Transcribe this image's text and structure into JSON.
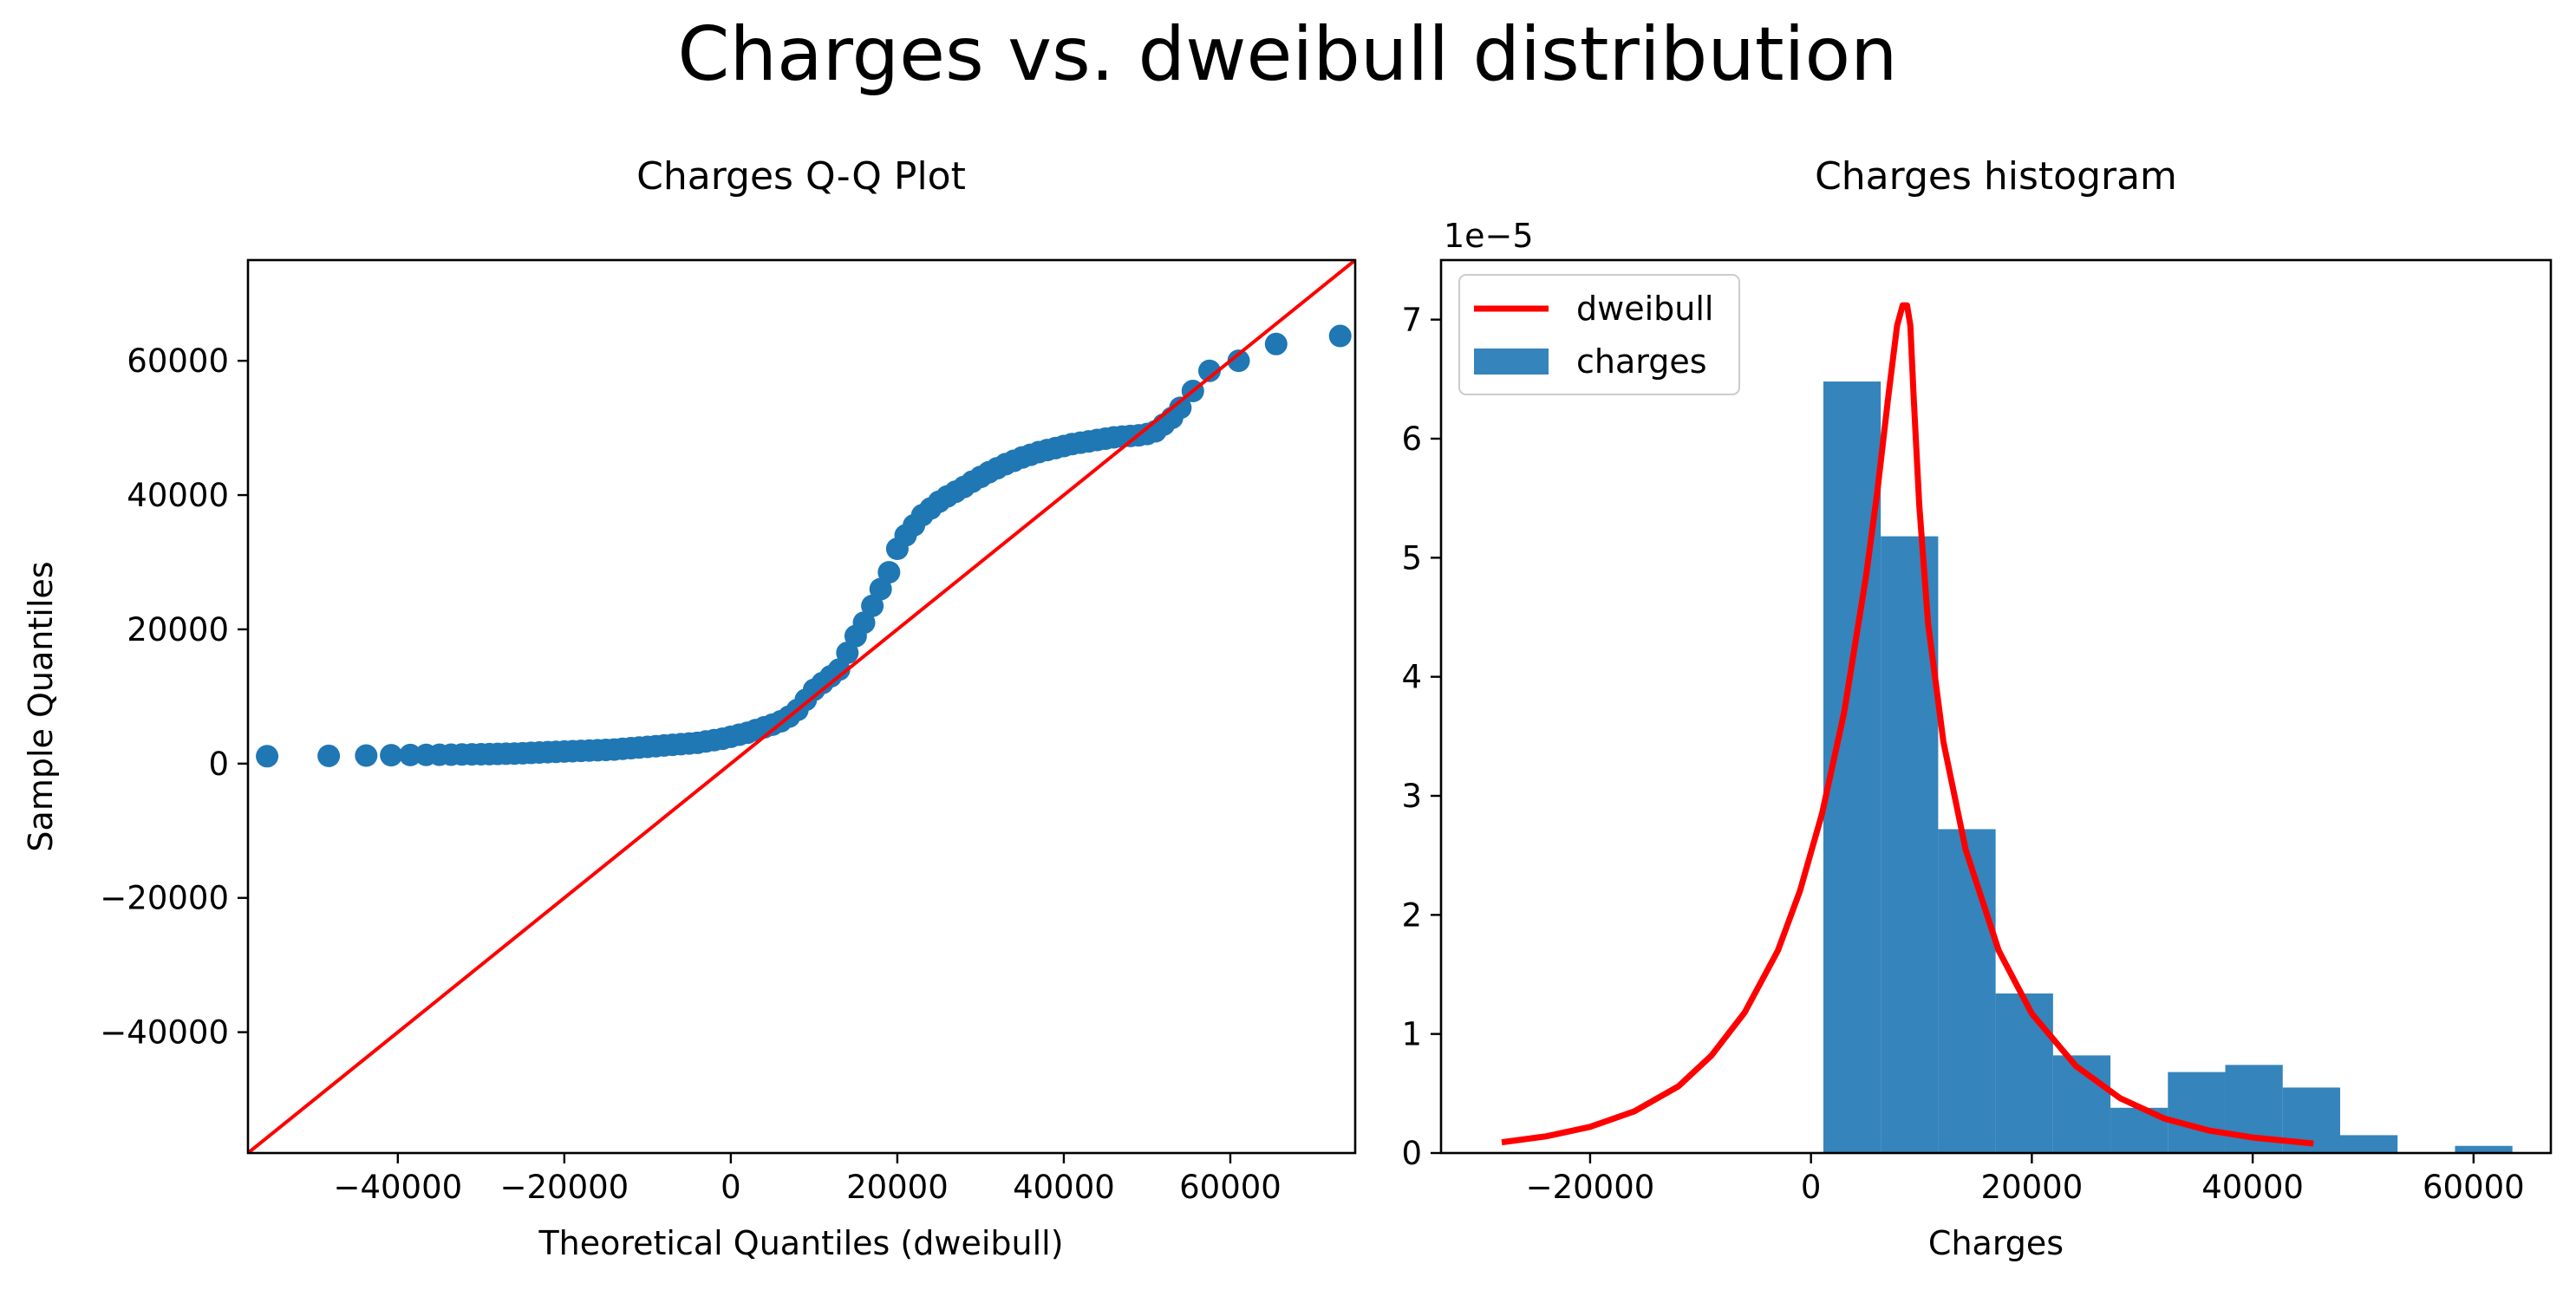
{
  "figure": {
    "suptitle": "Charges vs. dweibull distribution"
  },
  "chart_data": [
    {
      "type": "scatter",
      "title": "Charges Q-Q Plot",
      "xlabel": "Theoretical Quantiles (dweibull)",
      "ylabel": "Sample Quantiles",
      "xlim": [
        -58000,
        75000
      ],
      "ylim": [
        -58000,
        75000
      ],
      "xticks": [
        -40000,
        -20000,
        0,
        20000,
        40000,
        60000
      ],
      "yticks": [
        -40000,
        -20000,
        0,
        20000,
        40000,
        60000
      ],
      "xtick_labels": [
        "−40000",
        "−20000",
        "0",
        "20000",
        "40000",
        "60000"
      ],
      "ytick_labels": [
        "−40000",
        "−20000",
        "0",
        "20000",
        "40000",
        "60000"
      ],
      "grid": false,
      "reference_line": {
        "name": "",
        "color": "#ff0000",
        "slope": 1,
        "intercept": 0
      },
      "series": [
        {
          "name": "",
          "color": "#1f77b4",
          "x": [
            -55700,
            -48300,
            -43800,
            -40800,
            -38500,
            -36600,
            -35000,
            -33600,
            -32300,
            -31100,
            -30000,
            -29000,
            -28000,
            -27000,
            -26000,
            -25000,
            -24000,
            -23000,
            -22000,
            -21000,
            -20000,
            -19000,
            -18000,
            -17000,
            -16000,
            -15000,
            -14000,
            -13000,
            -12000,
            -11000,
            -10000,
            -9000,
            -8000,
            -7000,
            -6000,
            -5000,
            -4000,
            -3000,
            -2000,
            -1000,
            0,
            1000,
            2000,
            3000,
            4000,
            5000,
            6000,
            7000,
            8000,
            9000,
            10000,
            11000,
            12000,
            13000,
            14000,
            15000,
            16000,
            17000,
            18000,
            19000,
            20000,
            21000,
            22000,
            23000,
            24000,
            25000,
            26000,
            27000,
            28000,
            29000,
            30000,
            31000,
            32000,
            33000,
            34000,
            35000,
            36000,
            37000,
            38000,
            39000,
            40000,
            41000,
            42000,
            43000,
            44000,
            45000,
            46000,
            47000,
            48000,
            49000,
            50000,
            51000,
            52000,
            53000,
            54000,
            55500,
            57500,
            61000,
            65500,
            73200
          ],
          "y": [
            1100,
            1150,
            1200,
            1250,
            1280,
            1300,
            1320,
            1340,
            1360,
            1380,
            1400,
            1420,
            1450,
            1480,
            1500,
            1550,
            1600,
            1650,
            1700,
            1750,
            1800,
            1850,
            1900,
            1950,
            2000,
            2050,
            2100,
            2200,
            2300,
            2400,
            2500,
            2600,
            2700,
            2800,
            2900,
            3000,
            3100,
            3300,
            3500,
            3700,
            4000,
            4300,
            4600,
            5000,
            5400,
            5800,
            6300,
            7000,
            8000,
            9500,
            11000,
            12000,
            13000,
            14000,
            16500,
            19000,
            21000,
            23500,
            26000,
            28500,
            32000,
            34000,
            35500,
            37000,
            38000,
            39000,
            39800,
            40500,
            41200,
            42000,
            42700,
            43400,
            44000,
            44600,
            45100,
            45600,
            46000,
            46400,
            46700,
            47000,
            47300,
            47600,
            47800,
            48000,
            48200,
            48400,
            48600,
            48700,
            48800,
            48900,
            49100,
            49500,
            50500,
            51500,
            53000,
            55500,
            58500,
            60000,
            62500,
            63700
          ]
        }
      ]
    },
    {
      "type": "bar",
      "title": "Charges histogram",
      "xlabel": "Charges",
      "ylabel": "",
      "scale_label": "1e−5",
      "xlim": [
        -33500,
        67000
      ],
      "ylim": [
        0,
        7.5
      ],
      "xticks": [
        -20000,
        0,
        20000,
        40000,
        60000
      ],
      "yticks": [
        0,
        1,
        2,
        3,
        4,
        5,
        6,
        7
      ],
      "xtick_labels": [
        "−20000",
        "0",
        "20000",
        "40000",
        "60000"
      ],
      "ytick_labels": [
        "0",
        "1",
        "2",
        "3",
        "4",
        "5",
        "6",
        "7"
      ],
      "grid": false,
      "legend": {
        "position": "upper-left",
        "entries": [
          "dweibull",
          "charges"
        ]
      },
      "bins": {
        "edges": [
          1122,
          6320,
          11520,
          16720,
          21920,
          27120,
          32320,
          37520,
          42720,
          47920,
          53120,
          58320,
          63520
        ],
        "values": [
          6.48,
          5.18,
          2.72,
          1.34,
          0.82,
          0.38,
          0.68,
          0.74,
          0.55,
          0.15,
          0,
          0.06
        ],
        "name": "charges",
        "color": "#1f77b4"
      },
      "curve": {
        "name": "dweibull",
        "color": "#ff0000",
        "x": [
          -28000,
          -24000,
          -20000,
          -16000,
          -12000,
          -9000,
          -6000,
          -3000,
          -1000,
          1000,
          3000,
          5000,
          6000,
          7000,
          7800,
          8300,
          8700,
          9000,
          9300,
          9800,
          10600,
          12000,
          14000,
          17000,
          20000,
          24000,
          28000,
          32000,
          36000,
          40000,
          45500
        ],
        "y": [
          0.09,
          0.14,
          0.22,
          0.35,
          0.56,
          0.82,
          1.18,
          1.7,
          2.2,
          2.85,
          3.7,
          4.85,
          5.55,
          6.35,
          6.95,
          7.12,
          7.12,
          6.95,
          6.35,
          5.45,
          4.45,
          3.45,
          2.55,
          1.7,
          1.17,
          0.73,
          0.46,
          0.29,
          0.19,
          0.13,
          0.08
        ]
      }
    }
  ]
}
